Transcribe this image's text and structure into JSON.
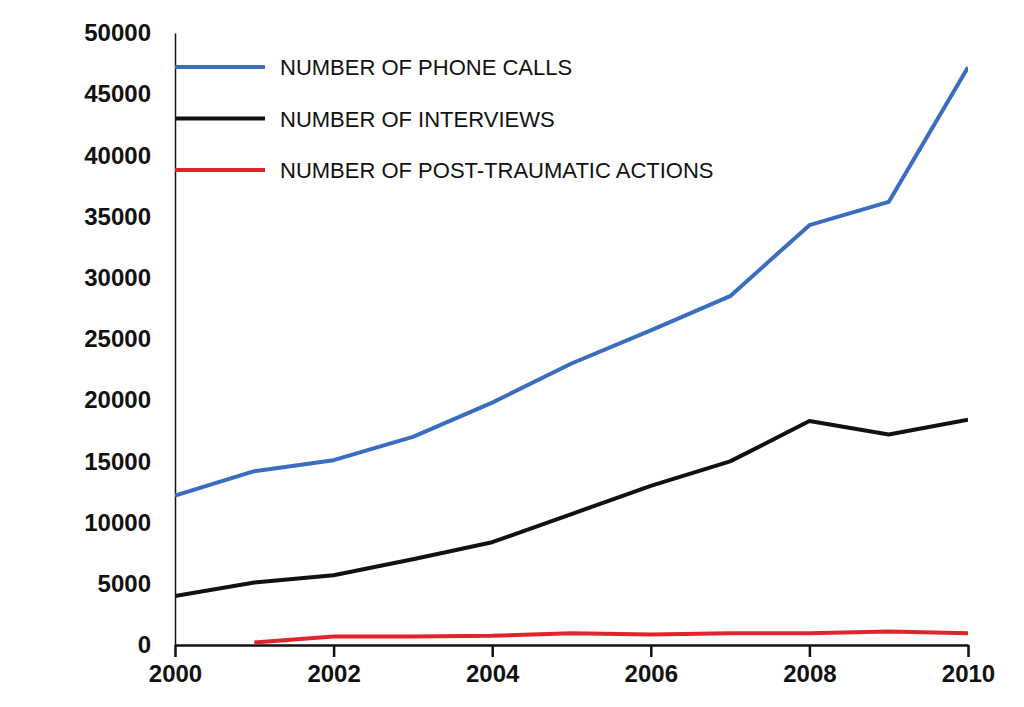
{
  "chart_data": {
    "type": "line",
    "x": [
      2000,
      2001,
      2002,
      2003,
      2004,
      2005,
      2006,
      2007,
      2008,
      2009,
      2010
    ],
    "series": [
      {
        "name": "NUMBER OF PHONE CALLS",
        "color": "#3a6cc0",
        "values": [
          12200,
          14200,
          15100,
          17000,
          19800,
          23000,
          25700,
          28500,
          34300,
          36200,
          47200
        ]
      },
      {
        "name": "NUMBER OF INTERVIEWS",
        "color": "#111111",
        "values": [
          4000,
          5100,
          5700,
          7000,
          8400,
          10700,
          13000,
          15000,
          18300,
          17200,
          18400
        ]
      },
      {
        "name": "NUMBER OF POST-TRAUMATIC ACTIONS",
        "color": "#e0242b",
        "values": [
          null,
          200,
          700,
          700,
          750,
          950,
          850,
          950,
          950,
          1100,
          950
        ]
      }
    ],
    "xlim": [
      2000,
      2010
    ],
    "xticks": [
      2000,
      2002,
      2004,
      2006,
      2008,
      2010
    ],
    "ylim": [
      0,
      50000
    ],
    "yticks": [
      0,
      5000,
      10000,
      15000,
      20000,
      25000,
      30000,
      35000,
      40000,
      45000,
      50000
    ],
    "grid": false,
    "legend": "upper left"
  }
}
